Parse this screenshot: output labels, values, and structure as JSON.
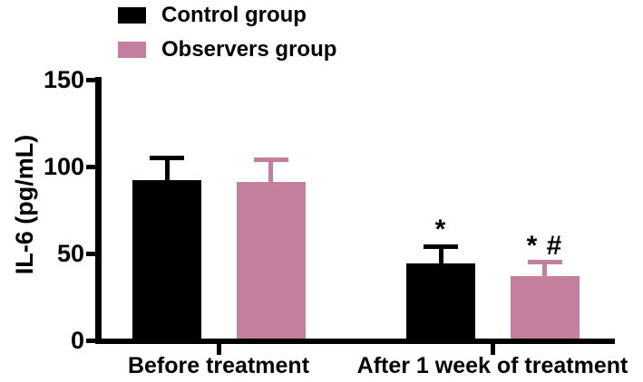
{
  "figure": {
    "background": "#ffffff",
    "text_color": "#000000"
  },
  "chart_data": {
    "type": "bar",
    "title": "",
    "xlabel": "",
    "ylabel": "IL-6 (pg/mL)",
    "categories": [
      "Before treatment",
      "After 1 week of treatment"
    ],
    "series": [
      {
        "name": "Control group",
        "color": "#000000",
        "values": [
          91,
          43
        ],
        "errors": [
          13,
          10
        ]
      },
      {
        "name": "Observers group",
        "color": "#c47f9e",
        "values": [
          90,
          36
        ],
        "errors": [
          13,
          8
        ]
      }
    ],
    "error_bars": "upper-only",
    "annotations": [
      {
        "category_index": 1,
        "series_index": 0,
        "text": "*"
      },
      {
        "category_index": 1,
        "series_index": 1,
        "text": "* #"
      }
    ],
    "ylim": [
      0,
      150
    ],
    "yticks": [
      0,
      50,
      100,
      150
    ],
    "legend_position": "top-left",
    "grid": false
  }
}
